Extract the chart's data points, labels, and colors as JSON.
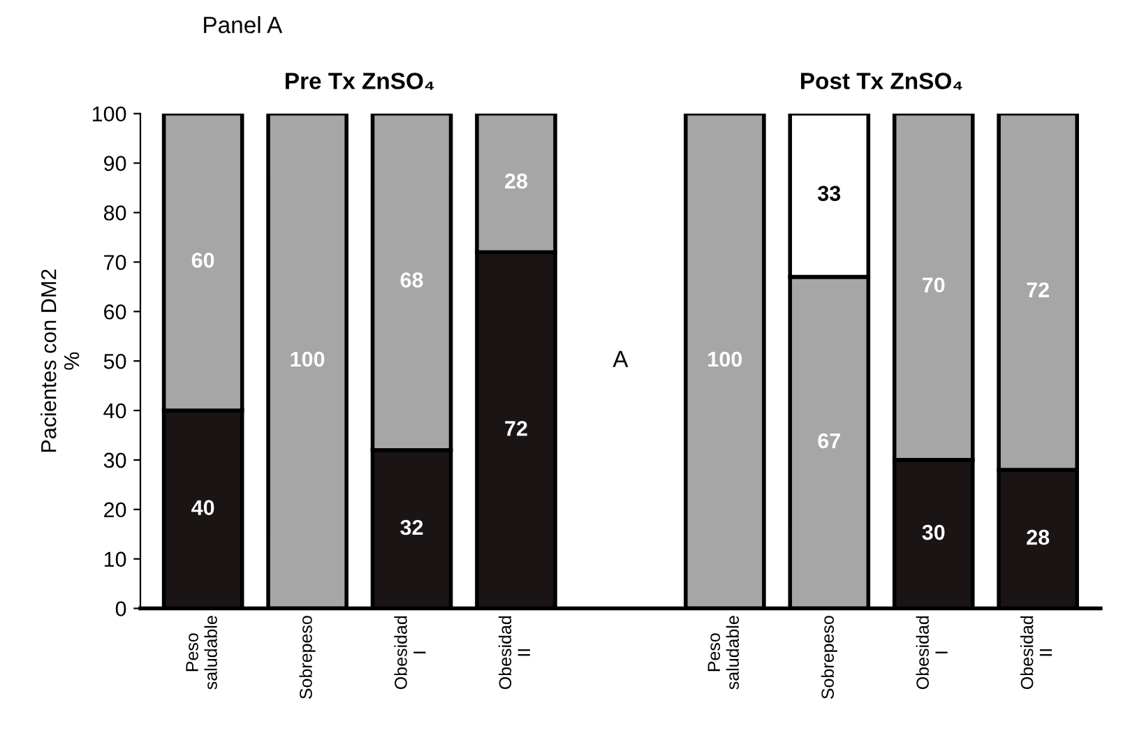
{
  "chart_data": {
    "type": "bar",
    "stacked": true,
    "title": "Panel A",
    "ylabel": "Pacientes con DM2\n%",
    "categories": [
      "Peso\nsaludable",
      "Sobrepeso",
      "Obesidad\nI",
      "Obesidad\nII",
      null,
      "Peso\nsaludable",
      "Sobrepeso",
      "Obesidad\nI",
      "Obesidad\nII"
    ],
    "series": [
      {
        "color": "#1a1414",
        "values": [
          40,
          0,
          32,
          72,
          null,
          0,
          0,
          30,
          28
        ],
        "value_labels": [
          "40",
          null,
          "32",
          "72",
          null,
          null,
          null,
          "30",
          "28"
        ]
      },
      {
        "color": "#a6a6a6",
        "values": [
          60,
          100,
          68,
          28,
          null,
          100,
          67,
          70,
          72
        ],
        "value_labels": [
          "60",
          "100",
          "68",
          "28",
          null,
          "100",
          "67",
          "70",
          "72"
        ]
      },
      {
        "color": "#ffffff",
        "values": [
          0,
          0,
          0,
          0,
          null,
          0,
          33,
          0,
          0
        ],
        "value_labels": [
          null,
          null,
          null,
          null,
          null,
          null,
          "33",
          null,
          null
        ]
      }
    ],
    "annotations": [
      "Pre Tx ZnSO₄",
      "Post Tx ZnSO₄",
      "A"
    ],
    "ylim": [
      0,
      100
    ],
    "yticks": [
      0,
      10,
      20,
      30,
      40,
      50,
      60,
      70,
      80,
      90,
      100
    ],
    "grid": false,
    "legend": false
  }
}
